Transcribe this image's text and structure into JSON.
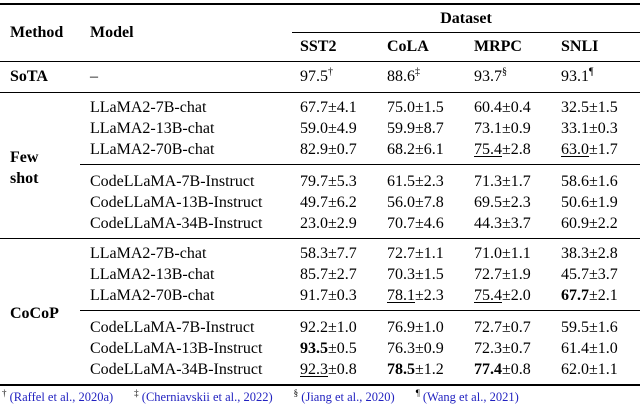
{
  "page": {
    "background": "#ffffff",
    "link_color": "#2222c0"
  },
  "table": {
    "header": {
      "method": "Method",
      "model": "Model",
      "dataset": "Dataset",
      "columns": [
        "SST2",
        "CoLA",
        "MRPC",
        "SNLI"
      ]
    },
    "sota_row": {
      "method": "SoTA",
      "model": "–",
      "cells": [
        {
          "value": "97.5",
          "sup": "†"
        },
        {
          "value": "88.6",
          "sup": "‡"
        },
        {
          "value": "93.7",
          "sup": "§"
        },
        {
          "value": "93.1",
          "sup": "¶"
        }
      ]
    },
    "sections": [
      {
        "method_lines": [
          "Few",
          "shot"
        ],
        "groups": [
          {
            "rows": [
              {
                "model": "LLaMA2-7B-chat",
                "cells": [
                  {
                    "v": "67.7",
                    "pm": "4.1"
                  },
                  {
                    "v": "75.0",
                    "pm": "1.5"
                  },
                  {
                    "v": "60.4",
                    "pm": "0.4"
                  },
                  {
                    "v": "32.5",
                    "pm": "1.5"
                  }
                ]
              },
              {
                "model": "LLaMA2-13B-chat",
                "cells": [
                  {
                    "v": "59.0",
                    "pm": "4.9"
                  },
                  {
                    "v": "59.9",
                    "pm": "8.7"
                  },
                  {
                    "v": "73.1",
                    "pm": "0.9"
                  },
                  {
                    "v": "33.1",
                    "pm": "0.3"
                  }
                ]
              },
              {
                "model": "LLaMA2-70B-chat",
                "cells": [
                  {
                    "v": "82.9",
                    "pm": "0.7"
                  },
                  {
                    "v": "68.2",
                    "pm": "6.1"
                  },
                  {
                    "v": "75.4",
                    "pm": "2.8",
                    "u": true
                  },
                  {
                    "v": "63.0",
                    "pm": "1.7",
                    "u": true
                  }
                ]
              }
            ]
          },
          {
            "rows": [
              {
                "model": "CodeLLaMA-7B-Instruct",
                "cells": [
                  {
                    "v": "79.7",
                    "pm": "5.3"
                  },
                  {
                    "v": "61.5",
                    "pm": "2.3"
                  },
                  {
                    "v": "71.3",
                    "pm": "1.7"
                  },
                  {
                    "v": "58.6",
                    "pm": "1.6"
                  }
                ]
              },
              {
                "model": "CodeLLaMA-13B-Instruct",
                "cells": [
                  {
                    "v": "49.7",
                    "pm": "6.2"
                  },
                  {
                    "v": "56.0",
                    "pm": "7.8"
                  },
                  {
                    "v": "69.5",
                    "pm": "2.3"
                  },
                  {
                    "v": "50.6",
                    "pm": "1.9"
                  }
                ]
              },
              {
                "model": "CodeLLaMA-34B-Instruct",
                "cells": [
                  {
                    "v": "23.0",
                    "pm": "2.9"
                  },
                  {
                    "v": "70.7",
                    "pm": "4.6"
                  },
                  {
                    "v": "44.3",
                    "pm": "3.7"
                  },
                  {
                    "v": "60.9",
                    "pm": "2.2"
                  }
                ]
              }
            ]
          }
        ]
      },
      {
        "method_lines": [
          "CoCoP"
        ],
        "groups": [
          {
            "rows": [
              {
                "model": "LLaMA2-7B-chat",
                "cells": [
                  {
                    "v": "58.3",
                    "pm": "7.7"
                  },
                  {
                    "v": "72.7",
                    "pm": "1.1"
                  },
                  {
                    "v": "71.0",
                    "pm": "1.1"
                  },
                  {
                    "v": "38.3",
                    "pm": "2.8"
                  }
                ]
              },
              {
                "model": "LLaMA2-13B-chat",
                "cells": [
                  {
                    "v": "85.7",
                    "pm": "2.7"
                  },
                  {
                    "v": "70.3",
                    "pm": "1.5"
                  },
                  {
                    "v": "72.7",
                    "pm": "1.9"
                  },
                  {
                    "v": "45.7",
                    "pm": "3.7"
                  }
                ]
              },
              {
                "model": "LLaMA2-70B-chat",
                "cells": [
                  {
                    "v": "91.7",
                    "pm": "0.3"
                  },
                  {
                    "v": "78.1",
                    "pm": "2.3",
                    "u": true
                  },
                  {
                    "v": "75.4",
                    "pm": "2.0",
                    "u": true
                  },
                  {
                    "v": "67.7",
                    "pm": "2.1",
                    "b": true
                  }
                ]
              }
            ]
          },
          {
            "rows": [
              {
                "model": "CodeLLaMA-7B-Instruct",
                "cells": [
                  {
                    "v": "92.2",
                    "pm": "1.0"
                  },
                  {
                    "v": "76.9",
                    "pm": "1.0"
                  },
                  {
                    "v": "72.7",
                    "pm": "0.7"
                  },
                  {
                    "v": "59.5",
                    "pm": "1.6"
                  }
                ]
              },
              {
                "model": "CodeLLaMA-13B-Instruct",
                "cells": [
                  {
                    "v": "93.5",
                    "pm": "0.5",
                    "b": true
                  },
                  {
                    "v": "76.3",
                    "pm": "0.9"
                  },
                  {
                    "v": "72.3",
                    "pm": "0.7"
                  },
                  {
                    "v": "61.4",
                    "pm": "1.0"
                  }
                ]
              },
              {
                "model": "CodeLLaMA-34B-Instruct",
                "cells": [
                  {
                    "v": "92.3",
                    "pm": "0.8",
                    "u": true
                  },
                  {
                    "v": "78.5",
                    "pm": "1.2",
                    "b": true
                  },
                  {
                    "v": "77.4",
                    "pm": "0.8",
                    "b": true
                  },
                  {
                    "v": "62.0",
                    "pm": "1.1"
                  }
                ]
              }
            ]
          }
        ]
      }
    ],
    "footnotes": [
      {
        "sym": "†",
        "cite": "(Raffel et al., 2020a)"
      },
      {
        "sym": "‡",
        "cite": "(Cherniavskii et al., 2022)"
      },
      {
        "sym": "§",
        "cite": "(Jiang et al., 2020)"
      },
      {
        "sym": "¶",
        "cite": "(Wang et al., 2021)"
      }
    ]
  }
}
